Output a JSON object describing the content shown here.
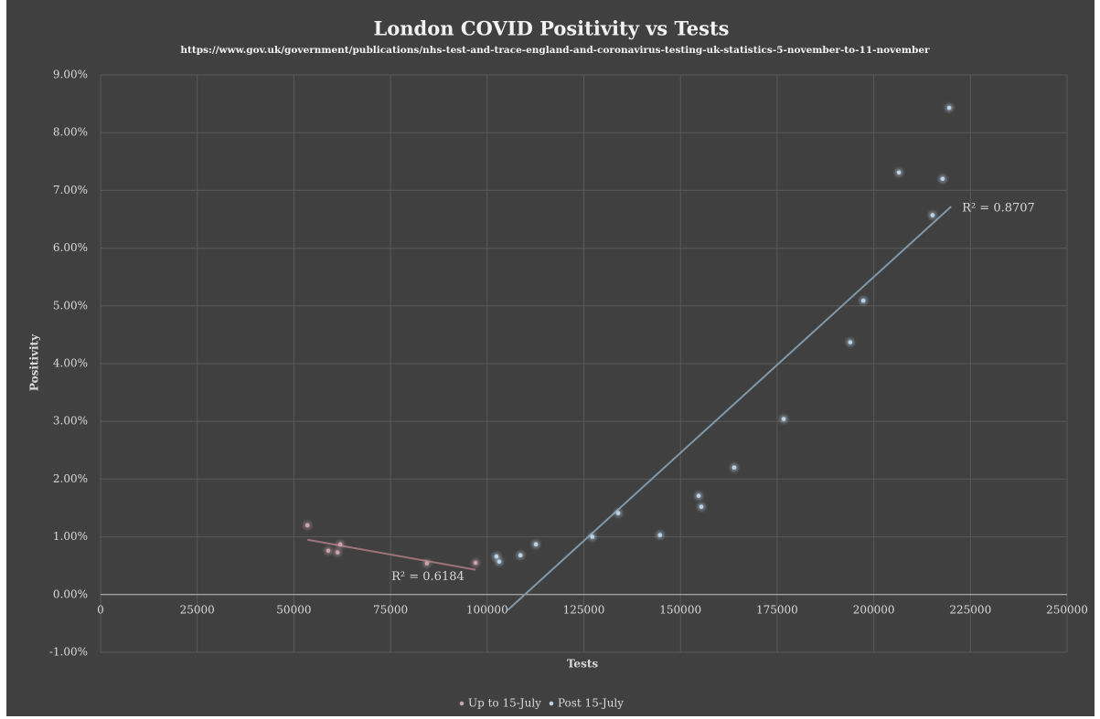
{
  "chart_data": {
    "type": "scatter",
    "title": "London COVID Positivity vs Tests",
    "subtitle": "https://www.gov.uk/government/publications/nhs-test-and-trace-england-and-coronavirus-testing-uk-statistics-5-november-to-11-november",
    "x_label": "Tests",
    "y_label": "Positivity",
    "xlim": [
      0,
      250000
    ],
    "xticks": [
      0,
      25000,
      50000,
      75000,
      100000,
      125000,
      150000,
      175000,
      200000,
      225000,
      250000
    ],
    "ylim": [
      -1,
      9
    ],
    "yticks": [
      {
        "value": -1,
        "label": "-1.00%"
      },
      {
        "value": 0,
        "label": "0.00%"
      },
      {
        "value": 1,
        "label": "1.00%"
      },
      {
        "value": 2,
        "label": "2.00%"
      },
      {
        "value": 3,
        "label": "3.00%"
      },
      {
        "value": 4,
        "label": "4.00%"
      },
      {
        "value": 5,
        "label": "5.00%"
      },
      {
        "value": 6,
        "label": "6.00%"
      },
      {
        "value": 7,
        "label": "7.00%"
      },
      {
        "value": 8,
        "label": "8.00%"
      },
      {
        "value": 9,
        "label": "9.00%"
      }
    ],
    "grid": true,
    "legend": "bottom",
    "series": [
      {
        "name": "Up to 15-July",
        "color": "#c9a3ab",
        "x": [
          53500,
          58900,
          61300,
          62000,
          84400,
          97000
        ],
        "values": [
          1.2,
          0.76,
          0.73,
          0.87,
          0.54,
          0.55
        ],
        "trend": {
          "color": "#a0737b",
          "x": [
            53500,
            97000
          ],
          "values": [
            0.95,
            0.43
          ],
          "label": "R² = 0.6184"
        }
      },
      {
        "name": "Post 15-July",
        "color": "#bcd2e6",
        "x": [
          102400,
          103100,
          108600,
          112600,
          127200,
          133900,
          144700,
          154700,
          155400,
          163900,
          176700,
          193900,
          197300,
          206500,
          215200,
          217800,
          219500
        ],
        "values": [
          0.66,
          0.57,
          0.68,
          0.87,
          1.0,
          1.41,
          1.03,
          1.71,
          1.52,
          2.2,
          3.04,
          4.37,
          5.09,
          7.31,
          6.57,
          7.2,
          8.43
        ],
        "trend": {
          "color": "#7f98aa",
          "x": [
            105300,
            220000
          ],
          "values": [
            -0.27,
            6.72
          ],
          "label": "R² = 0.8707"
        }
      }
    ]
  }
}
